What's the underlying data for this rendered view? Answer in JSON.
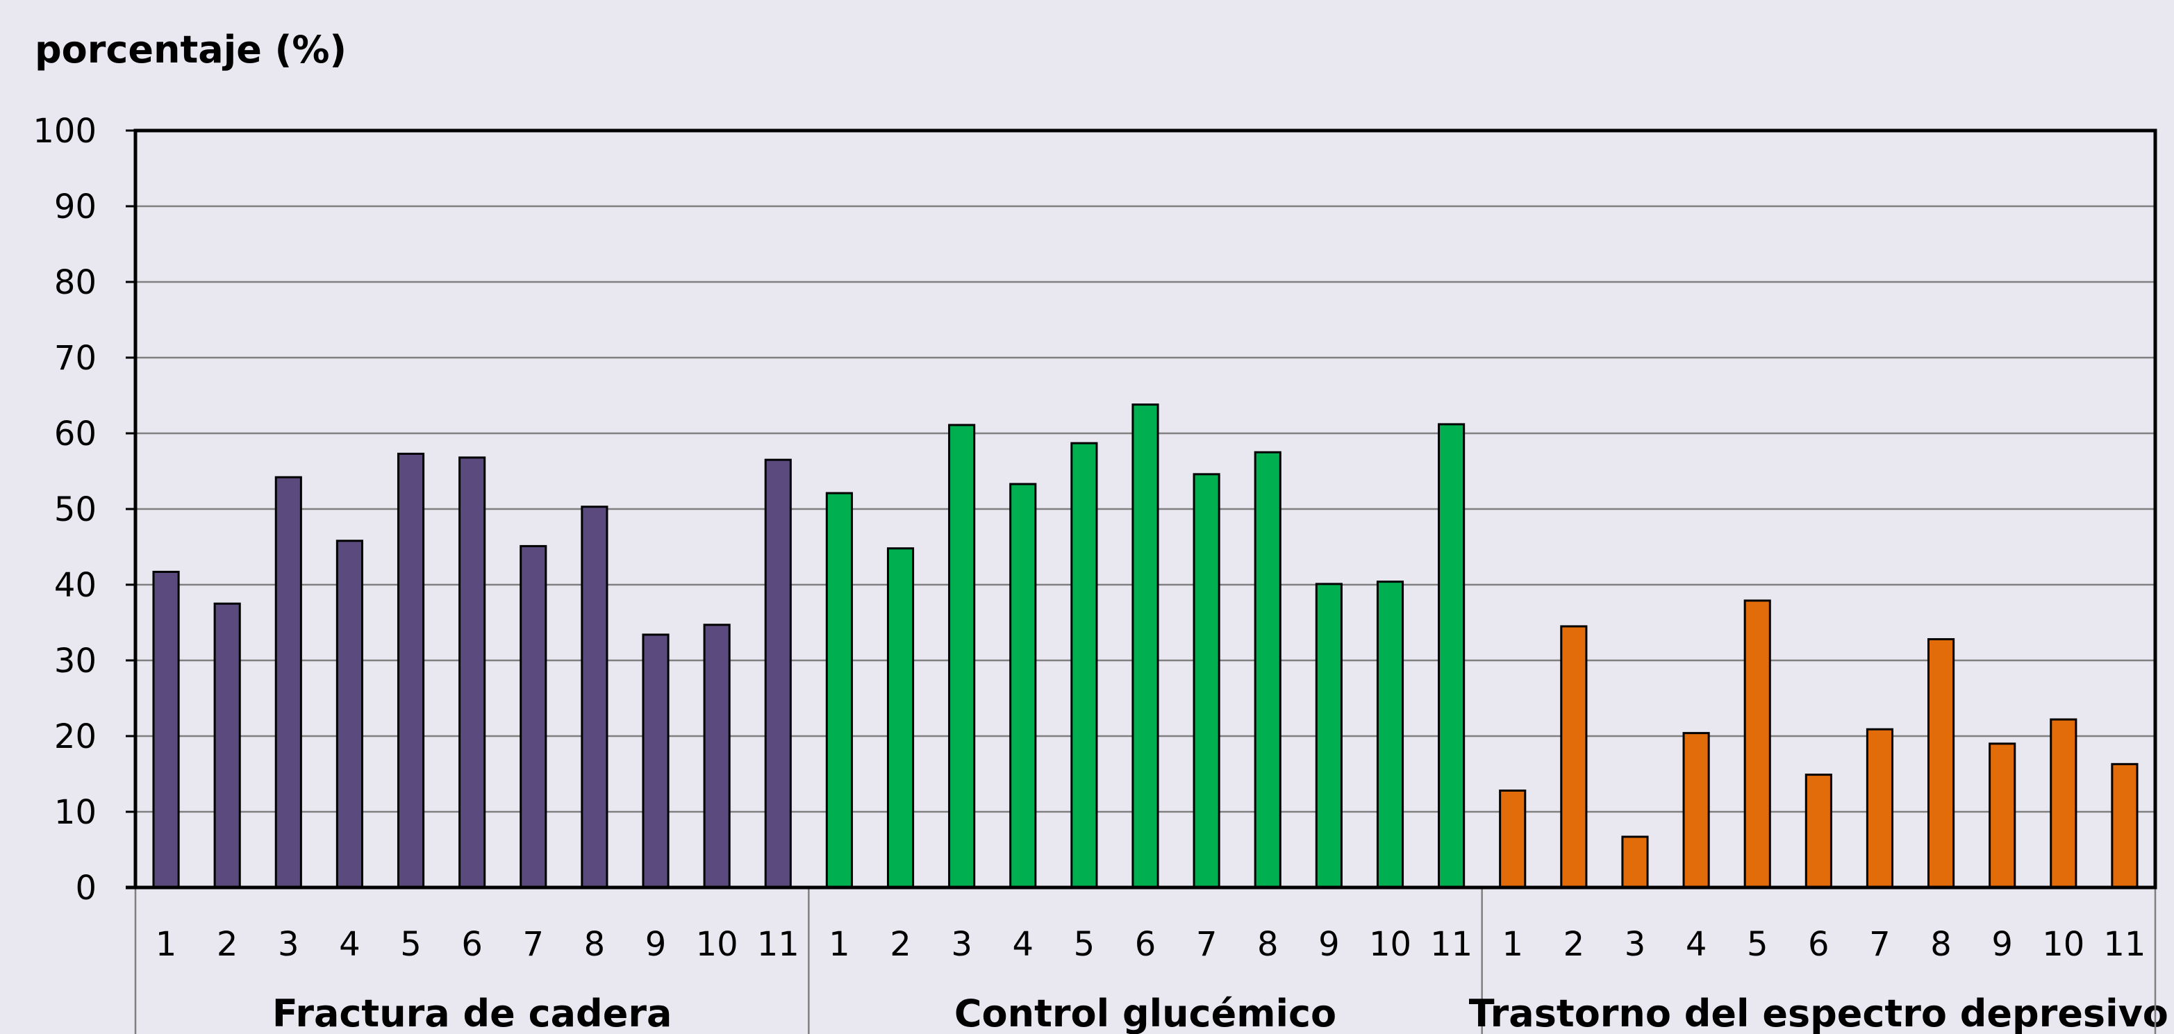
{
  "chart_data": {
    "type": "bar",
    "ylabel": "porcentaje (%)",
    "ylim": [
      0,
      100
    ],
    "yticks": [
      0,
      10,
      20,
      30,
      40,
      50,
      60,
      70,
      80,
      90,
      100
    ],
    "grid": true,
    "groups": [
      {
        "name": "Fractura de cadera",
        "color": "#5b4a7e",
        "categories": [
          "1",
          "2",
          "3",
          "4",
          "5",
          "6",
          "7",
          "8",
          "9",
          "10",
          "11"
        ],
        "values": [
          41.7,
          37.5,
          54.2,
          45.8,
          57.3,
          56.8,
          45.1,
          50.3,
          33.4,
          34.7,
          56.5
        ]
      },
      {
        "name": "Control glucémico",
        "color": "#00b050",
        "categories": [
          "1",
          "2",
          "3",
          "4",
          "5",
          "6",
          "7",
          "8",
          "9",
          "10",
          "11"
        ],
        "values": [
          52.1,
          44.8,
          61.1,
          53.3,
          58.7,
          63.8,
          54.6,
          57.5,
          40.1,
          40.4,
          61.2
        ]
      },
      {
        "name": "Trastorno del espectro depresivo",
        "color": "#e36c0a",
        "categories": [
          "1",
          "2",
          "3",
          "4",
          "5",
          "6",
          "7",
          "8",
          "9",
          "10",
          "11"
        ],
        "values": [
          12.8,
          34.5,
          6.7,
          20.4,
          37.9,
          14.9,
          20.9,
          32.8,
          19.0,
          22.2,
          16.3
        ]
      }
    ]
  }
}
